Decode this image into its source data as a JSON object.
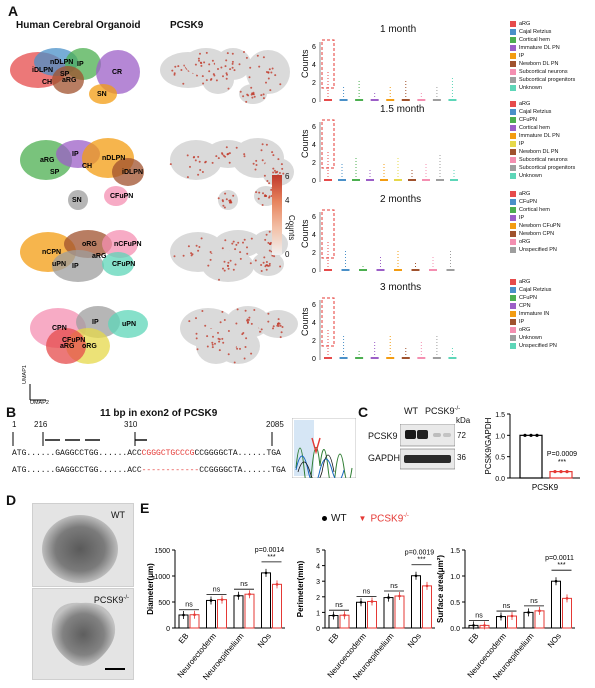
{
  "panel_labels": {
    "a": "A",
    "b": "B",
    "c": "C",
    "d": "D",
    "e": "E"
  },
  "panel_a": {
    "col1_title": "Human Cerebral Organoid",
    "col2_title": "PCSK9",
    "umap_axis": {
      "x": "UMAP2",
      "y": "UMAP1"
    },
    "colorbar": {
      "label": "Counts",
      "ticks": [
        "6",
        "4",
        "2",
        "0"
      ]
    },
    "row_labels": [
      [
        "iDLPN",
        "nDLPN",
        "IP",
        "CR",
        "SN",
        "aRG",
        "CH",
        "SP"
      ],
      [
        "aRG",
        "IP",
        "nDLPN",
        "iDLPN",
        "CFuPN",
        "SN",
        "SP",
        "CH"
      ],
      [
        "nCPN",
        "oRG",
        "nCFuPN",
        "IP",
        "CFuPN",
        "uPN",
        "aRG"
      ],
      [
        "CPN",
        "IP",
        "uPN",
        "oRG",
        "aRG",
        "CFuPN"
      ]
    ],
    "timepoints": [
      "1 month",
      "1.5 month",
      "2 months",
      "3 months"
    ],
    "violin_ylabel": "Counts",
    "violin_yticks": [
      "6",
      "4",
      "2",
      "0"
    ],
    "legends": [
      [
        {
          "name": "aRG",
          "color": "#e64b4b"
        },
        {
          "name": "Cajal Retzius",
          "color": "#4a90c8"
        },
        {
          "name": "Cortical hem",
          "color": "#4caf50"
        },
        {
          "name": "Immature DL PN",
          "color": "#9c5fc7"
        },
        {
          "name": "IP",
          "color": "#f39c12"
        },
        {
          "name": "Newborn DL PN",
          "color": "#a0522d"
        },
        {
          "name": "Subcortical neurons",
          "color": "#f48fb1"
        },
        {
          "name": "Subcortical progenitors",
          "color": "#9e9e9e"
        },
        {
          "name": "Unknown",
          "color": "#5dd6b8"
        }
      ],
      [
        {
          "name": "aRG",
          "color": "#e64b4b"
        },
        {
          "name": "Cajal Retzius",
          "color": "#4a90c8"
        },
        {
          "name": "CFuPN",
          "color": "#4caf50"
        },
        {
          "name": "Cortical hem",
          "color": "#9c5fc7"
        },
        {
          "name": "Immature DL PN",
          "color": "#f39c12"
        },
        {
          "name": "IP",
          "color": "#e6d84a"
        },
        {
          "name": "Newborn DL PN",
          "color": "#a0522d"
        },
        {
          "name": "Subcortical neurons",
          "color": "#f48fb1"
        },
        {
          "name": "Subcortical progenitors",
          "color": "#9e9e9e"
        },
        {
          "name": "Unknown",
          "color": "#5dd6b8"
        }
      ],
      [
        {
          "name": "aRG",
          "color": "#e64b4b"
        },
        {
          "name": "CFuPN",
          "color": "#4a90c8"
        },
        {
          "name": "Cortical hem",
          "color": "#4caf50"
        },
        {
          "name": "IP",
          "color": "#9c5fc7"
        },
        {
          "name": "Newborn CFuPN",
          "color": "#f39c12"
        },
        {
          "name": "Newborn CPN",
          "color": "#a0522d"
        },
        {
          "name": "oRG",
          "color": "#f48fb1"
        },
        {
          "name": "Unspecified PN",
          "color": "#9e9e9e"
        }
      ],
      [
        {
          "name": "aRG",
          "color": "#e64b4b"
        },
        {
          "name": "Cajal Retzius",
          "color": "#4a90c8"
        },
        {
          "name": "CFuPN",
          "color": "#4caf50"
        },
        {
          "name": "CPN",
          "color": "#9c5fc7"
        },
        {
          "name": "Immature IN",
          "color": "#f39c12"
        },
        {
          "name": "IP",
          "color": "#a0522d"
        },
        {
          "name": "oRG",
          "color": "#f48fb1"
        },
        {
          "name": "Unknown",
          "color": "#9e9e9e"
        },
        {
          "name": "Unspecified PN",
          "color": "#5dd6b8"
        }
      ]
    ]
  },
  "panel_b": {
    "title": "11 bp in exon2 of PCSK9",
    "positions": [
      "1",
      "216",
      "310",
      "2085"
    ],
    "wt_seq": {
      "start": "ATG",
      "mid": "......GAGGCCTGG......ACC",
      "red": "CGGGCTGCCCG",
      "end": "CCGGGGCTA......TGA"
    },
    "ko_seq": {
      "start": "ATG",
      "mid": "......GAGGCCTGG......ACC",
      "red": "",
      "gap": "------------",
      "end": "CCGGGGCTA......TGA"
    }
  },
  "panel_c": {
    "wt": "WT",
    "ko": "PCSK9",
    "ko_sup": "-/-",
    "kda": "kDa",
    "bands": [
      {
        "name": "PCSK9",
        "kda": "72"
      },
      {
        "name": "GAPDH",
        "kda": "36"
      }
    ],
    "bar_ylabel": "PCSK9/GAPDH",
    "bar_xlabel": "PCSK9",
    "pvalue": "P=0.0009",
    "stars": "***"
  },
  "panel_d": {
    "wt": "WT",
    "ko": "PCSK9",
    "ko_sup": "-/-"
  },
  "panel_e": {
    "legend_wt": "WT",
    "legend_ko": "PCSK9",
    "legend_ko_sup": "-/-",
    "ns": "ns",
    "stars": "***"
  },
  "chart_data": [
    {
      "type": "bar",
      "title": "",
      "categories": [
        "WT",
        "PCSK9-/-"
      ],
      "values": [
        1.0,
        0.15
      ],
      "xlabel": "PCSK9",
      "ylabel": "PCSK9/GAPDH",
      "ylim": [
        0.0,
        1.5
      ],
      "yticks": [
        "0.0",
        "0.5",
        "1.0",
        "1.5"
      ],
      "annotation": "P=0.0009"
    },
    {
      "type": "bar",
      "categories": [
        "EB",
        "Neuroectoderm",
        "Neuroepithelium",
        "NOs"
      ],
      "series": [
        {
          "name": "WT",
          "values": [
            250,
            530,
            620,
            1060
          ]
        },
        {
          "name": "PCSK9-/-",
          "values": [
            255,
            545,
            650,
            840
          ]
        }
      ],
      "ylabel": "Diameter(μm)",
      "ylim": [
        0,
        1500
      ],
      "yticks": [
        "0",
        "500",
        "1000",
        "1500"
      ],
      "pvalue": "p=0.0014"
    },
    {
      "type": "bar",
      "categories": [
        "EB",
        "Neuroectoderm",
        "Neuroepithelium",
        "NOs"
      ],
      "series": [
        {
          "name": "WT",
          "values": [
            0.8,
            1.65,
            1.95,
            3.35
          ]
        },
        {
          "name": "PCSK9-/-",
          "values": [
            0.82,
            1.7,
            2.05,
            2.7
          ]
        }
      ],
      "ylabel": "Perimeter(mm)",
      "ylim": [
        0,
        5
      ],
      "yticks": [
        "0",
        "1",
        "2",
        "3",
        "4",
        "5"
      ],
      "pvalue": "p=0.0019"
    },
    {
      "type": "bar",
      "categories": [
        "EB",
        "Neuroectoderm",
        "Neuroepithelium",
        "NOs"
      ],
      "series": [
        {
          "name": "WT",
          "values": [
            0.05,
            0.22,
            0.3,
            0.9
          ]
        },
        {
          "name": "PCSK9-/-",
          "values": [
            0.05,
            0.23,
            0.33,
            0.57
          ]
        }
      ],
      "ylabel": "Surface area(μm²)",
      "ylim": [
        0,
        1.5
      ],
      "yticks": [
        "0.0",
        "0.5",
        "1.0",
        "1.5"
      ],
      "pvalue": "p=0.0011"
    }
  ]
}
